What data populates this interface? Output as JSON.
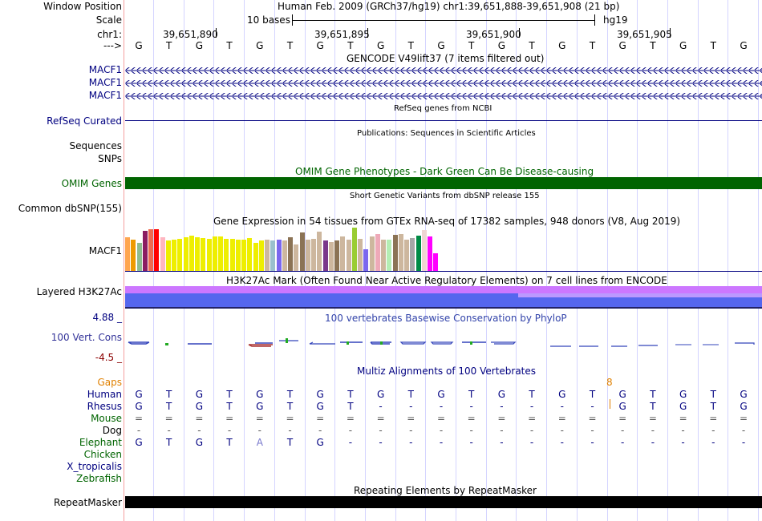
{
  "header": {
    "window_position_label": "Window Position",
    "window_position_text": "Human Feb. 2009 (GRCh37/hg19)   chr1:39,651,888-39,651,908 (21 bp)",
    "scale_label": "Scale",
    "scale_text": "10 bases",
    "assembly": "hg19",
    "chrom_label": "chr1:",
    "strand_label": "--->",
    "ruler_ticks": [
      "39,651,890",
      "39,651,895",
      "39,651,900",
      "39,651,905"
    ]
  },
  "sequence": [
    "G",
    "T",
    "G",
    "T",
    "G",
    "T",
    "G",
    "T",
    "G",
    "T",
    "G",
    "T",
    "G",
    "T",
    "G",
    "T",
    "G",
    "T",
    "G",
    "T",
    "G"
  ],
  "tracks": {
    "gencode": {
      "title": "GENCODE V49lift37 (7 items filtered out)",
      "labels": [
        "MACF1",
        "MACF1",
        "MACF1"
      ]
    },
    "refseq": {
      "title": "RefSeq genes from NCBI",
      "label": "RefSeq Curated"
    },
    "publications": {
      "title": "Publications: Sequences in Scientific Articles",
      "labels": [
        "Sequences",
        "SNPs"
      ]
    },
    "omim": {
      "title": "OMIM Gene Phenotypes - Dark Green Can Be Disease-causing",
      "label": "OMIM Genes"
    },
    "dbsnp": {
      "title": "Short Genetic Variants from dbSNP release 155",
      "label": "Common dbSNP(155)"
    },
    "gtex": {
      "title": "Gene Expression in 54 tissues from GTEx RNA-seq of 17382 samples, 948 donors (V8, Aug 2019)",
      "label": "MACF1",
      "bars": [
        {
          "v": 0.78,
          "c": "#FFA54F"
        },
        {
          "v": 0.72,
          "c": "#EE9A00"
        },
        {
          "v": 0.64,
          "c": "#8FBC8F"
        },
        {
          "v": 0.92,
          "c": "#8B1C62"
        },
        {
          "v": 0.96,
          "c": "#EE6A50"
        },
        {
          "v": 0.96,
          "c": "#FF0000"
        },
        {
          "v": 0.78,
          "c": "#FFB6C1"
        },
        {
          "v": 0.7,
          "c": "#EEEE00"
        },
        {
          "v": 0.72,
          "c": "#EEEE00"
        },
        {
          "v": 0.74,
          "c": "#EEEE00"
        },
        {
          "v": 0.78,
          "c": "#EEEE00"
        },
        {
          "v": 0.82,
          "c": "#EEEE00"
        },
        {
          "v": 0.78,
          "c": "#EEEE00"
        },
        {
          "v": 0.76,
          "c": "#EEEE00"
        },
        {
          "v": 0.74,
          "c": "#EEEE00"
        },
        {
          "v": 0.8,
          "c": "#EEEE00"
        },
        {
          "v": 0.8,
          "c": "#EEEE00"
        },
        {
          "v": 0.74,
          "c": "#EEEE00"
        },
        {
          "v": 0.74,
          "c": "#EEEE00"
        },
        {
          "v": 0.72,
          "c": "#EEEE00"
        },
        {
          "v": 0.72,
          "c": "#EEEE00"
        },
        {
          "v": 0.76,
          "c": "#EEEE00"
        },
        {
          "v": 0.64,
          "c": "#EEEE00"
        },
        {
          "v": 0.7,
          "c": "#EEEE00"
        },
        {
          "v": 0.72,
          "c": "#CDB79E"
        },
        {
          "v": 0.7,
          "c": "#9AC0CD"
        },
        {
          "v": 0.72,
          "c": "#7A67EE"
        },
        {
          "v": 0.7,
          "c": "#CDB79E"
        },
        {
          "v": 0.78,
          "c": "#8B7355"
        },
        {
          "v": 0.62,
          "c": "#CDB79E"
        },
        {
          "v": 0.88,
          "c": "#8B7355"
        },
        {
          "v": 0.72,
          "c": "#CDB79E"
        },
        {
          "v": 0.74,
          "c": "#CDB79E"
        },
        {
          "v": 0.9,
          "c": "#CDB79E"
        },
        {
          "v": 0.7,
          "c": "#7A378B"
        },
        {
          "v": 0.66,
          "c": "#CDB79E"
        },
        {
          "v": 0.7,
          "c": "#8B7355"
        },
        {
          "v": 0.8,
          "c": "#CDB79E"
        },
        {
          "v": 0.72,
          "c": "#CDB79E"
        },
        {
          "v": 1.0,
          "c": "#9ACD32"
        },
        {
          "v": 0.74,
          "c": "#CDB79E"
        },
        {
          "v": 0.5,
          "c": "#7A67EE"
        },
        {
          "v": 0.8,
          "c": "#CDB79E"
        },
        {
          "v": 0.86,
          "c": "#EEA9B8"
        },
        {
          "v": 0.72,
          "c": "#CDB79E"
        },
        {
          "v": 0.72,
          "c": "#B4EEB4"
        },
        {
          "v": 0.84,
          "c": "#8B7355"
        },
        {
          "v": 0.86,
          "c": "#CDB79E"
        },
        {
          "v": 0.72,
          "c": "#CDB79E"
        },
        {
          "v": 0.76,
          "c": "#A6A6A6"
        },
        {
          "v": 0.82,
          "c": "#008B45"
        },
        {
          "v": 0.94,
          "c": "#EED5D2"
        },
        {
          "v": 0.8,
          "c": "#FF00FF"
        },
        {
          "v": 0.4,
          "c": "#FF00FF"
        }
      ]
    },
    "h3k27ac": {
      "title": "H3K27Ac Mark (Often Found Near Active Regulatory Elements) on 7 cell lines from ENCODE",
      "label": "Layered H3K27Ac"
    },
    "phylop": {
      "title": "100 vertebrates Basewise Conservation by PhyloP",
      "label": "100 Vert. Cons",
      "ymax": "4.88 _",
      "ymin": "-4.5 _"
    },
    "multiz": {
      "title": "Multiz Alignments of 100 Vertebrates",
      "gaps_label": "Gaps",
      "gap_count": "8",
      "species": [
        "Human",
        "Rhesus",
        "Mouse",
        "Dog",
        "Elephant",
        "Chicken",
        "X_tropicalis",
        "Zebrafish"
      ],
      "rows": {
        "rhesus": [
          "G",
          "T",
          "G",
          "T",
          "G",
          "T",
          "G",
          "T",
          "-",
          "-",
          "-",
          "-",
          "-",
          "-",
          "-",
          "-",
          "G",
          "T",
          "G",
          "T",
          "G"
        ],
        "mouse": [
          "=",
          "=",
          "=",
          "=",
          "=",
          "=",
          "=",
          "=",
          "=",
          "=",
          "=",
          "=",
          "=",
          "=",
          "=",
          "=",
          "=",
          "=",
          "=",
          "=",
          "="
        ],
        "dog": [
          "-",
          "-",
          "-",
          "-",
          "-",
          "-",
          "-",
          "-",
          "-",
          "-",
          "-",
          "-",
          "-",
          "-",
          "-",
          "-",
          "-",
          "-",
          "-",
          "-",
          "-"
        ],
        "elephant": [
          "G",
          "T",
          "G",
          "T",
          "A",
          "T",
          "G",
          "-",
          "-",
          "-",
          "-",
          "-",
          "-",
          "-",
          "-",
          "-",
          "-",
          "-",
          "-",
          "-",
          "-"
        ]
      }
    },
    "repeatmasker": {
      "title": "Repeating Elements by RepeatMasker",
      "label": "RepeatMasker"
    }
  },
  "colors": {
    "navy": "#000080",
    "omim_green": "#006400",
    "h3k27ac_purple": "#cc77ff",
    "h3k27ac_blue": "#5566ee",
    "phylop_blue": "#3344bb"
  }
}
